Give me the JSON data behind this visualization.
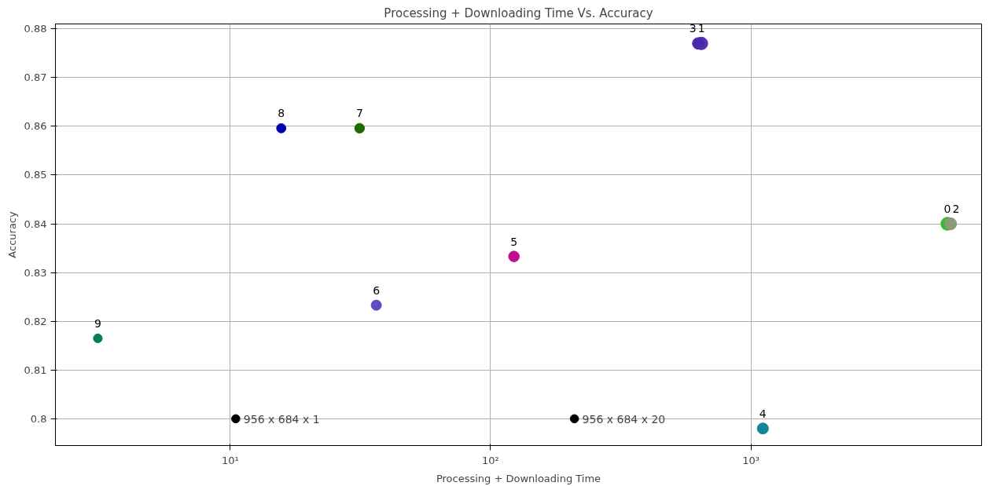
{
  "chart_data": {
    "type": "scatter",
    "title": "Processing + Downloading Time Vs. Accuracy",
    "xlabel": "Processing + Downloading Time",
    "ylabel": "Accuracy",
    "log": "x",
    "grid": true,
    "marker": "circle",
    "xlim": [
      2.13,
      7700
    ],
    "ylim": [
      0.7945,
      0.881
    ],
    "xticks": [
      {
        "value": 10,
        "label": "10¹"
      },
      {
        "value": 100,
        "label": "10²"
      },
      {
        "value": 1000,
        "label": "10³"
      }
    ],
    "yticks": [
      0.8,
      0.81,
      0.82,
      0.83,
      0.84,
      0.85,
      0.86,
      0.87,
      0.88
    ],
    "series": [
      {
        "name": "0",
        "color": "#33bb33",
        "x": [
          5690
        ],
        "values": [
          0.84
        ]
      },
      {
        "name": "1",
        "color": "#5533aa",
        "x": [
          646
        ],
        "values": [
          0.877
        ]
      },
      {
        "name": "2",
        "color": "#8a9a78",
        "x": [
          5850
        ],
        "values": [
          0.84
        ]
      },
      {
        "name": "3",
        "color": "#4a2aaa",
        "x": [
          628
        ],
        "values": [
          0.877
        ]
      },
      {
        "name": "4",
        "color": "#118899",
        "x": [
          1112
        ],
        "values": [
          0.798
        ]
      },
      {
        "name": "5",
        "color": "#c01090",
        "x": [
          123
        ],
        "values": [
          0.8333
        ]
      },
      {
        "name": "6",
        "color": "#5b4fc0",
        "x": [
          36.4
        ],
        "values": [
          0.8233
        ]
      },
      {
        "name": "7",
        "color": "#1f6a00",
        "x": [
          31.4
        ],
        "values": [
          0.8596
        ]
      },
      {
        "name": "8",
        "color": "#0000b5",
        "x": [
          15.7
        ],
        "values": [
          0.8596
        ]
      },
      {
        "name": "9",
        "color": "#057f4c",
        "x": [
          3.1
        ],
        "values": [
          0.8165
        ]
      },
      {
        "color": "#000000",
        "x": [
          10.5,
          210
        ],
        "values": [
          0.8,
          0.8
        ]
      }
    ],
    "annotations": [
      {
        "text": "956 x 684 x 1",
        "x": 10.5,
        "y": 0.8
      },
      {
        "text": "956 x 684 x 20",
        "x": 210,
        "y": 0.8
      }
    ]
  }
}
